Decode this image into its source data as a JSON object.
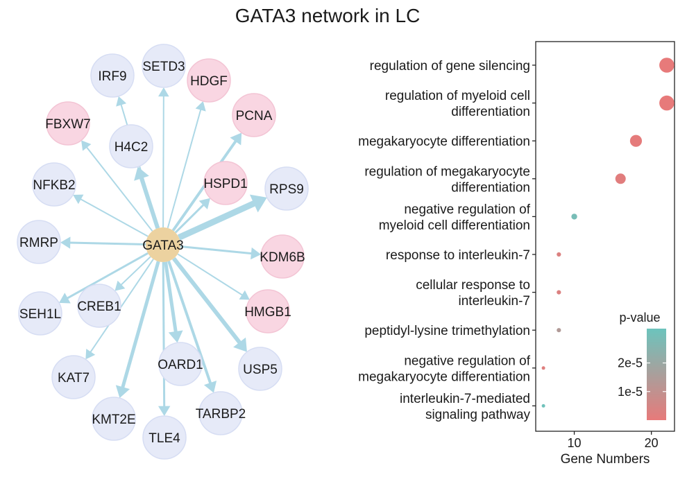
{
  "title": "GATA3 network in LC",
  "colors": {
    "edge": "#add8e6",
    "node_default": "#e6eaf8",
    "node_default_stroke": "#d6ddf3",
    "node_highlight": "#f9d6e2",
    "node_highlight_stroke": "#f3c4d4",
    "hub": "#ecd2a0",
    "pvalue_low": "#e77a7a",
    "pvalue_high": "#6cc4bd"
  },
  "network": {
    "hub": "GATA3",
    "nodes": [
      {
        "label": "IRF9",
        "type": "default"
      },
      {
        "label": "SETD3",
        "type": "default"
      },
      {
        "label": "HDGF",
        "type": "highlight"
      },
      {
        "label": "PCNA",
        "type": "highlight"
      },
      {
        "label": "FBXW7",
        "type": "highlight"
      },
      {
        "label": "H4C2",
        "type": "default"
      },
      {
        "label": "HSPD1",
        "type": "highlight"
      },
      {
        "label": "RPS9",
        "type": "default"
      },
      {
        "label": "NFKB2",
        "type": "default"
      },
      {
        "label": "RMRP",
        "type": "default"
      },
      {
        "label": "KDM6B",
        "type": "highlight"
      },
      {
        "label": "SEH1L",
        "type": "default"
      },
      {
        "label": "CREB1",
        "type": "default"
      },
      {
        "label": "HMGB1",
        "type": "highlight"
      },
      {
        "label": "KAT7",
        "type": "default"
      },
      {
        "label": "OARD1",
        "type": "default"
      },
      {
        "label": "USP5",
        "type": "default"
      },
      {
        "label": "KMT2E",
        "type": "default"
      },
      {
        "label": "TARBP2",
        "type": "default"
      },
      {
        "label": "TLE4",
        "type": "default"
      }
    ],
    "edge_weights": {
      "IRF9": 2,
      "SETD3": 2,
      "HDGF": 2,
      "PCNA": 4,
      "FBXW7": 2,
      "H4C2": 6,
      "HSPD1": 3,
      "RPS9": 9,
      "NFKB2": 2,
      "RMRP": 3,
      "KDM6B": 3,
      "SEH1L": 3,
      "CREB1": 2,
      "HMGB1": 2,
      "KAT7": 2,
      "OARD1": 5,
      "USP5": 6,
      "KMT2E": 5,
      "TARBP2": 4,
      "TLE4": 3
    }
  },
  "chart_data": {
    "type": "scatter",
    "xlabel": "Gene Numbers",
    "xlim": [
      5,
      23
    ],
    "xticks": [
      10,
      20
    ],
    "categories": [
      [
        "regulation of gene silencing"
      ],
      [
        "regulation of myeloid cell",
        "differentiation"
      ],
      [
        "megakaryocyte differentiation"
      ],
      [
        "regulation of megakaryocyte",
        "differentiation"
      ],
      [
        "negative regulation of",
        "myeloid cell differentiation"
      ],
      [
        "response to interleukin-7"
      ],
      [
        "cellular response to",
        "interleukin-7"
      ],
      [
        "peptidyl-lysine trimethylation"
      ],
      [
        "negative regulation of",
        "megakaryocyte differentiation"
      ],
      [
        "interleukin-7-mediated",
        "signaling pathway"
      ]
    ],
    "points": [
      {
        "x": 22,
        "pvalue": 1e-08
      },
      {
        "x": 22,
        "pvalue": 1e-08
      },
      {
        "x": 18,
        "pvalue": 5e-07
      },
      {
        "x": 16,
        "pvalue": 1.5e-06
      },
      {
        "x": 10,
        "pvalue": 2.9e-05
      },
      {
        "x": 8,
        "pvalue": 3e-06
      },
      {
        "x": 8,
        "pvalue": 3e-06
      },
      {
        "x": 8,
        "pvalue": 1.4e-05
      },
      {
        "x": 6,
        "pvalue": 2e-06
      },
      {
        "x": 6,
        "pvalue": 3.1e-05
      }
    ],
    "legend": {
      "title": "p-value",
      "ticks": [
        {
          "value": 2e-05,
          "label": "2e-5"
        },
        {
          "value": 1e-05,
          "label": "1e-5"
        }
      ],
      "range": [
        0,
        3.2e-05
      ],
      "placement": "bottom-right"
    }
  }
}
